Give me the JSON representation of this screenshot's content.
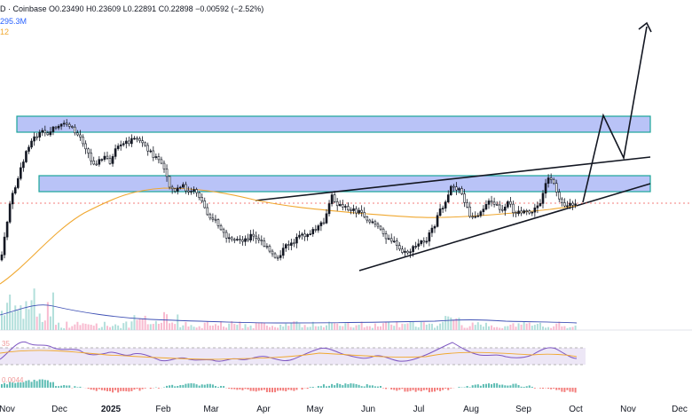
{
  "legend": {
    "line1": "D · Coinbase  O0.23490  H0.23609  L0.22891  C0.22898  −0.00592 (−2.52%)",
    "line2": "295.3M",
    "line3": "12"
  },
  "indicators": {
    "rsi_value": "35",
    "macd_value": "0.0044"
  },
  "colors": {
    "up": "#131722",
    "down": "#ffffff",
    "zone_fill": "#b9c3f7",
    "zone_border": "#1aa59a",
    "ma_line": "#f0a830",
    "volume_ma": "#3f51b5",
    "rsi_line": "#7e57c2",
    "rsi_band": "#ede7f6",
    "macd_pos": "#26a69a",
    "macd_neg": "#ef5350",
    "price_dotted": "#ef5350",
    "text": "#131722"
  },
  "chart_data": {
    "type": "candlestick",
    "x_axis_labels": [
      "Nov",
      "Dec",
      "2025",
      "Feb",
      "Mar",
      "Apr",
      "May",
      "Jun",
      "Jul",
      "Aug",
      "Sep",
      "Oct",
      "Nov",
      "Dec"
    ],
    "last_close": 0.22898,
    "annotations": [
      {
        "type": "zone",
        "label": "upper resistance zone"
      },
      {
        "type": "zone",
        "label": "mid resistance zone"
      },
      {
        "type": "trendline",
        "label": "rising upper trendline"
      },
      {
        "type": "trendline",
        "label": "rising lower trendline"
      },
      {
        "type": "arrow",
        "label": "projected breakout path"
      }
    ],
    "price_path": [
      [
        0,
        293
      ],
      [
        4,
        270
      ],
      [
        10,
        230
      ],
      [
        18,
        205
      ],
      [
        26,
        180
      ],
      [
        30,
        165
      ],
      [
        38,
        155
      ],
      [
        45,
        150
      ],
      [
        52,
        150
      ],
      [
        60,
        145
      ],
      [
        68,
        142
      ],
      [
        76,
        140
      ],
      [
        82,
        148
      ],
      [
        90,
        155
      ],
      [
        97,
        168
      ],
      [
        102,
        183
      ],
      [
        110,
        182
      ],
      [
        118,
        177
      ],
      [
        124,
        183
      ],
      [
        130,
        168
      ],
      [
        136,
        165
      ],
      [
        142,
        160
      ],
      [
        148,
        158
      ],
      [
        154,
        155
      ],
      [
        160,
        162
      ],
      [
        168,
        170
      ],
      [
        176,
        180
      ],
      [
        182,
        185
      ],
      [
        188,
        205
      ],
      [
        194,
        215
      ],
      [
        200,
        213
      ],
      [
        206,
        210
      ],
      [
        212,
        218
      ],
      [
        220,
        215
      ],
      [
        226,
        225
      ],
      [
        232,
        240
      ],
      [
        238,
        245
      ],
      [
        244,
        252
      ],
      [
        250,
        262
      ],
      [
        256,
        270
      ],
      [
        262,
        274
      ],
      [
        268,
        270
      ],
      [
        276,
        270
      ],
      [
        282,
        265
      ],
      [
        288,
        270
      ],
      [
        294,
        273
      ],
      [
        300,
        280
      ],
      [
        306,
        288
      ],
      [
        312,
        290
      ],
      [
        318,
        282
      ],
      [
        324,
        275
      ],
      [
        330,
        272
      ],
      [
        336,
        268
      ],
      [
        342,
        265
      ],
      [
        348,
        262
      ],
      [
        354,
        260
      ],
      [
        360,
        255
      ],
      [
        366,
        248
      ],
      [
        372,
        220
      ],
      [
        378,
        228
      ],
      [
        384,
        234
      ],
      [
        390,
        235
      ],
      [
        396,
        236
      ],
      [
        402,
        238
      ],
      [
        408,
        240
      ],
      [
        414,
        248
      ],
      [
        420,
        250
      ],
      [
        426,
        258
      ],
      [
        432,
        265
      ],
      [
        438,
        268
      ],
      [
        444,
        275
      ],
      [
        450,
        282
      ],
      [
        456,
        286
      ],
      [
        462,
        282
      ],
      [
        468,
        278
      ],
      [
        474,
        272
      ],
      [
        480,
        270
      ],
      [
        486,
        260
      ],
      [
        492,
        245
      ],
      [
        498,
        232
      ],
      [
        504,
        220
      ],
      [
        508,
        206
      ],
      [
        512,
        212
      ],
      [
        518,
        215
      ],
      [
        524,
        230
      ],
      [
        530,
        250
      ],
      [
        536,
        242
      ],
      [
        542,
        236
      ],
      [
        548,
        228
      ],
      [
        554,
        230
      ],
      [
        560,
        233
      ],
      [
        566,
        240
      ],
      [
        572,
        228
      ],
      [
        578,
        238
      ],
      [
        584,
        238
      ],
      [
        590,
        240
      ],
      [
        596,
        240
      ],
      [
        602,
        236
      ],
      [
        608,
        228
      ],
      [
        612,
        212
      ],
      [
        616,
        200
      ],
      [
        620,
        205
      ],
      [
        624,
        210
      ],
      [
        628,
        220
      ],
      [
        632,
        225
      ],
      [
        636,
        232
      ],
      [
        642,
        230
      ],
      [
        648,
        232
      ]
    ]
  }
}
